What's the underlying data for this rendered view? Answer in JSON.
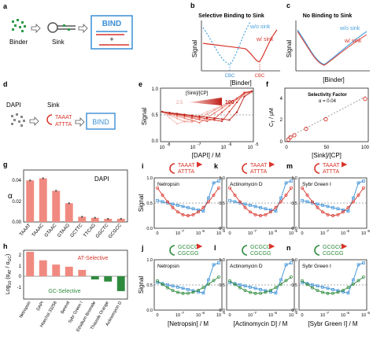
{
  "panel_labels": {
    "a": "a",
    "b": "b",
    "c": "c",
    "d": "d",
    "e": "e",
    "f": "f",
    "g": "g",
    "h": "h",
    "i": "i",
    "j": "j",
    "k": "k",
    "l": "l",
    "m": "m",
    "n": "n"
  },
  "a": {
    "binder": "Binder",
    "sink": "Sink",
    "bind": "BIND",
    "plus": "+"
  },
  "b": {
    "title": "Selective Binding to Sink",
    "wo": "w/o sink",
    "w": "w/ sink",
    "cbc1": "CBC",
    "cbc2": "CBC",
    "ylabel": "Signal",
    "xlabel": "[Binder]"
  },
  "c": {
    "title": "No Binding to Sink",
    "wo": "w/o sink",
    "w": "w/ sink",
    "ylabel": "Signal",
    "xlabel": "[Binder]"
  },
  "d": {
    "dapi": "DAPI",
    "sink": "Sink",
    "seq_top": "TAAAT",
    "seq_bot": "ATTTA",
    "bind": "BIND"
  },
  "e": {
    "ylabel": "Signal",
    "xlabel": "[DAPI] / M",
    "legend_title": "[Sink]/[CP]",
    "legend_lo": "2.5",
    "legend_hi": "100",
    "yticks": [
      "0.0",
      "0.5",
      "1.0"
    ],
    "xticks": [
      "10",
      "10",
      "10",
      "10"
    ],
    "xexp": [
      "-8",
      "-7",
      "-6",
      "-5"
    ]
  },
  "f": {
    "ylabel": "C",
    "ylabel_sub": "T",
    "ylabel_unit": " / μM",
    "xlabel": "[Sink]/[CP]",
    "title": "Selectivity Factor",
    "alpha": "α = 0.04",
    "yticks": [
      "0",
      "2",
      "4"
    ],
    "xticks": [
      "0",
      "50",
      "100"
    ]
  },
  "g": {
    "ylabel": "α",
    "title": "DAPI",
    "yticks": [
      "0.00",
      "0.02",
      "0.04"
    ]
  },
  "h": {
    "ylabel_a": "Log",
    "ylabel_sub": "10",
    "ylabel_b": " (α",
    "ylabel_c": "AT",
    "ylabel_d": " / α",
    "ylabel_e": "GC",
    "ylabel_f": ")",
    "at": "AT-Selective",
    "gc": "GC-Selective",
    "yticks": [
      "2",
      "1",
      "0",
      "-1"
    ]
  },
  "binding_panels": {
    "seq_at_top": "TAAAT",
    "seq_at_bot": "ATTTA",
    "seq_gc_top": "GCGCC",
    "seq_gc_bot": "CGCGG",
    "ylabel": "Signal",
    "yticks": [
      "0.0",
      "0.5",
      "1.0"
    ],
    "xticks": [
      "0",
      "10",
      "10",
      "10"
    ],
    "xexp": [
      "",
      "-7",
      "-6",
      "-5"
    ],
    "i": "Netropsin",
    "k": "Actinomycin D",
    "m": "Sybr Green I",
    "j": "Netropsin",
    "l": "Actinomycin D",
    "n": "Sybr Green I",
    "xl_j": "[Netropsin] / M",
    "xl_l": "[Actinomycin D] / M",
    "xl_n": "[Sybr Green I] / M"
  },
  "colors": {
    "red": "#d9352b",
    "blue": "#3a8fd6",
    "green": "#2e8b3e",
    "dashblue": "#4aa3df",
    "bar_pink": "#f08a80",
    "bar_green": "#2e8b3e"
  },
  "chart_data": [
    {
      "id": "g",
      "type": "bar",
      "title": "DAPI",
      "ylabel": "α",
      "ylim": [
        0,
        0.05
      ],
      "categories": [
        "TAAAT",
        "TAAAC",
        "GTAAC",
        "GTAAG",
        "GCTTC",
        "TTCAG",
        "GGCTC",
        "GCGCC"
      ],
      "values": [
        0.04,
        0.042,
        0.03,
        0.018,
        0.005,
        0.004,
        0.003,
        0.003
      ]
    },
    {
      "id": "h",
      "type": "bar",
      "ylim": [
        -1.6,
        2.6
      ],
      "categories": [
        "Netropsin",
        "DAPI",
        "Hoechst 33258",
        "Berenil",
        "Sybr Green I",
        "Ethidium Bromide",
        "Thiazole Orange",
        "Actinomycin D"
      ],
      "values": [
        2.3,
        1.5,
        1.1,
        0.9,
        0.6,
        -0.3,
        -0.5,
        -1.4
      ]
    },
    {
      "id": "f",
      "type": "scatter",
      "xlabel": "[Sink]/[CP]",
      "title": "Selectivity Factor",
      "xlim": [
        0,
        100
      ],
      "ylim": [
        0,
        5
      ],
      "x": [
        2.5,
        5,
        10,
        25,
        50,
        100
      ],
      "y": [
        0.2,
        0.4,
        0.6,
        1.2,
        2.1,
        4.0
      ]
    }
  ]
}
